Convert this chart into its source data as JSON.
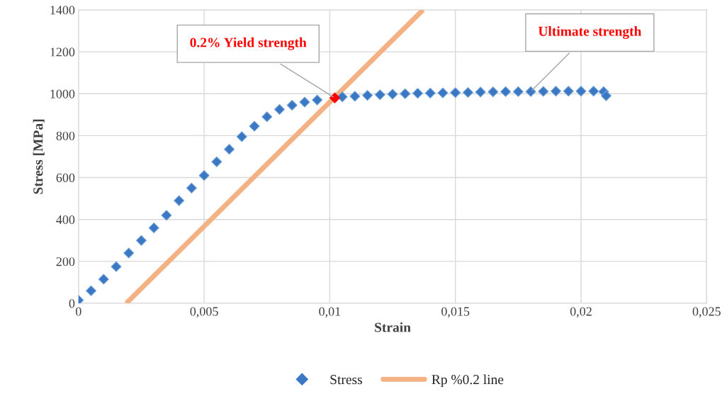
{
  "chart_data": {
    "type": "scatter",
    "xlabel": "Strain",
    "ylabel": "Stress [MPa]",
    "xlim": [
      0,
      0.025
    ],
    "ylim": [
      0,
      1400
    ],
    "xticks": [
      0,
      {
        "value": 0.005,
        "label": "0,005"
      },
      {
        "value": 0.01,
        "label": "0,01"
      },
      {
        "value": 0.015,
        "label": "0,015"
      },
      {
        "value": 0.02,
        "label": "0,02"
      },
      {
        "value": 0.025,
        "label": "0,025"
      }
    ],
    "yticks": [
      0,
      200,
      400,
      600,
      800,
      1000,
      1200,
      1400
    ],
    "grid": true,
    "legend": "bottom",
    "series": [
      {
        "name": "Stress",
        "marker": "diamond",
        "color": "#3a78c4",
        "x": [
          0,
          0.0005,
          0.001,
          0.0015,
          0.002,
          0.0025,
          0.003,
          0.0035,
          0.004,
          0.0045,
          0.005,
          0.0055,
          0.006,
          0.0065,
          0.007,
          0.0075,
          0.008,
          0.0085,
          0.009,
          0.0095,
          0.0105,
          0.011,
          0.0115,
          0.012,
          0.0125,
          0.013,
          0.0135,
          0.014,
          0.0145,
          0.015,
          0.0155,
          0.016,
          0.0165,
          0.017,
          0.0175,
          0.018,
          0.0185,
          0.019,
          0.0195,
          0.02,
          0.0205,
          0.0209,
          0.021
        ],
        "values": [
          15,
          60,
          115,
          175,
          240,
          300,
          360,
          420,
          490,
          550,
          610,
          675,
          735,
          795,
          845,
          890,
          925,
          945,
          960,
          970,
          985,
          988,
          992,
          995,
          998,
          1000,
          1002,
          1003,
          1004,
          1005,
          1006,
          1008,
          1009,
          1010,
          1010,
          1010,
          1011,
          1012,
          1012,
          1012,
          1012,
          1010,
          990
        ]
      },
      {
        "name": "Rp %0.2 line",
        "type": "line",
        "marker": "none",
        "color": "#f4b183",
        "x": [
          0.0019,
          0.01371
        ],
        "values": [
          0,
          1400
        ]
      },
      {
        "marker": "diamond",
        "color": "#ff0000",
        "x": [
          0.0102
        ],
        "values": [
          980
        ]
      }
    ],
    "annotations": [
      {
        "text": "0.2% Yield strength",
        "x": 0.0102,
        "y": 980
      },
      {
        "text": "Ultimate strength",
        "x": 0.018,
        "y": 1010
      }
    ]
  }
}
